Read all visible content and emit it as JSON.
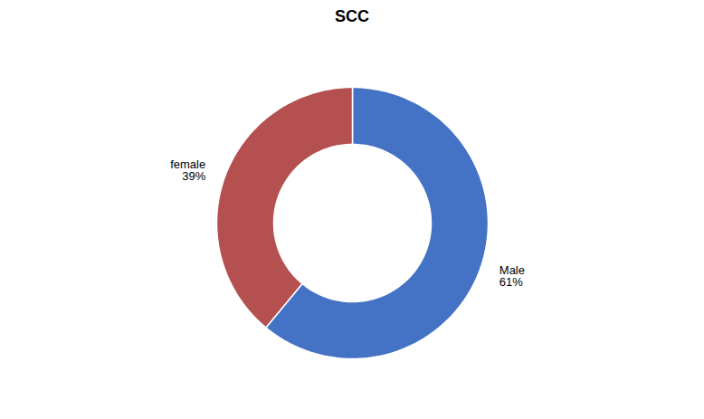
{
  "chart_data": {
    "type": "donut",
    "title": "SCC",
    "categories": [
      "Male",
      "female"
    ],
    "values": [
      61,
      39
    ],
    "value_labels": [
      "61%",
      "39%"
    ],
    "colors": [
      "#4472C4",
      "#B55050"
    ],
    "data_labels": true
  }
}
